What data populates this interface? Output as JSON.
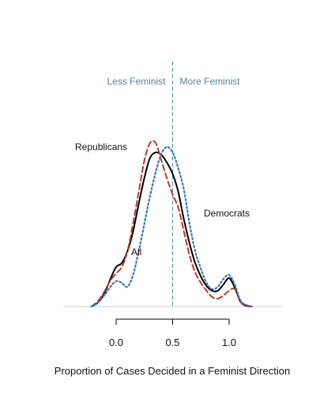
{
  "chart_data": {
    "type": "line",
    "title": "",
    "xlabel": "Proportion of Cases Decided in a Feminist Direction",
    "ylabel": "",
    "xlim": [
      -0.25,
      1.5
    ],
    "ylim": [
      0,
      2.2
    ],
    "x_ticks": [
      0.0,
      0.5,
      1.0
    ],
    "x_tick_labels": [
      "0.0",
      "0.5",
      "1.0"
    ],
    "grid": false,
    "legend": "none",
    "reference_line": {
      "x": 0.5,
      "style": "dashed",
      "color": "#4a90b0"
    },
    "region_labels": {
      "left": "Less Feminist",
      "right": "More Feminist"
    },
    "annotations": {
      "republicans": "Republicans",
      "democrats": "Democrats",
      "all": "All"
    },
    "series": [
      {
        "key": "all",
        "color": "#000000",
        "style": "solid",
        "x": [
          -0.22,
          -0.16,
          -0.1,
          -0.05,
          0.0,
          0.05,
          0.1,
          0.15,
          0.2,
          0.25,
          0.3,
          0.35,
          0.4,
          0.45,
          0.5,
          0.55,
          0.6,
          0.65,
          0.7,
          0.75,
          0.8,
          0.85,
          0.9,
          0.95,
          1.0,
          1.05,
          1.1,
          1.15,
          1.2
        ],
        "y": [
          0.0,
          0.05,
          0.18,
          0.35,
          0.5,
          0.55,
          0.7,
          0.95,
          1.3,
          1.63,
          1.88,
          1.95,
          1.92,
          1.82,
          1.68,
          1.45,
          1.1,
          0.8,
          0.55,
          0.38,
          0.26,
          0.2,
          0.2,
          0.28,
          0.36,
          0.24,
          0.06,
          0.01,
          0.0
        ]
      },
      {
        "key": "republicans",
        "color": "#b83a2a",
        "style": "dashed",
        "x": [
          -0.22,
          -0.16,
          -0.1,
          -0.05,
          0.0,
          0.05,
          0.1,
          0.15,
          0.2,
          0.25,
          0.3,
          0.35,
          0.4,
          0.45,
          0.5,
          0.55,
          0.6,
          0.65,
          0.7,
          0.75,
          0.8,
          0.85,
          0.9,
          0.95,
          1.0,
          1.05,
          1.1,
          1.15,
          1.2
        ],
        "y": [
          0.0,
          0.07,
          0.2,
          0.33,
          0.42,
          0.5,
          0.7,
          1.05,
          1.45,
          1.85,
          2.07,
          2.07,
          1.85,
          1.62,
          1.42,
          1.25,
          0.95,
          0.65,
          0.43,
          0.3,
          0.2,
          0.12,
          0.1,
          0.14,
          0.2,
          0.22,
          0.06,
          0.02,
          0.0
        ]
      },
      {
        "key": "democrats",
        "color": "#3b78b0",
        "style": "dotted",
        "x": [
          -0.22,
          -0.16,
          -0.1,
          -0.05,
          0.0,
          0.05,
          0.1,
          0.15,
          0.2,
          0.25,
          0.3,
          0.35,
          0.4,
          0.45,
          0.5,
          0.55,
          0.6,
          0.65,
          0.7,
          0.75,
          0.8,
          0.85,
          0.9,
          0.95,
          1.0,
          1.05,
          1.1,
          1.15,
          1.2
        ],
        "y": [
          0.0,
          0.05,
          0.15,
          0.25,
          0.32,
          0.3,
          0.25,
          0.4,
          0.7,
          1.05,
          1.4,
          1.7,
          1.93,
          2.02,
          1.95,
          1.75,
          1.48,
          1.05,
          0.7,
          0.48,
          0.3,
          0.22,
          0.25,
          0.35,
          0.4,
          0.28,
          0.08,
          0.02,
          0.0
        ]
      }
    ]
  }
}
